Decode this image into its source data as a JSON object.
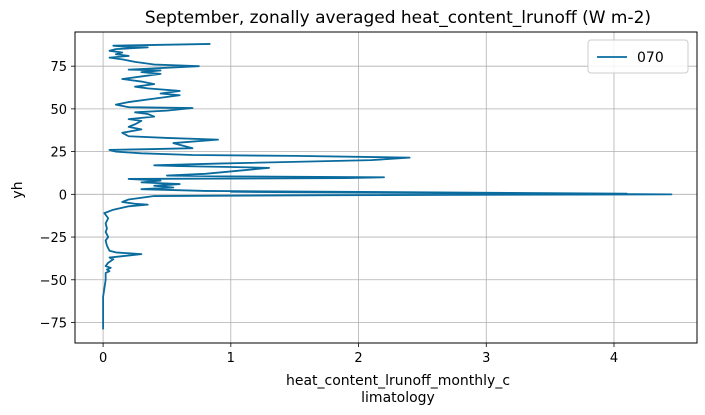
{
  "chart_data": {
    "type": "line",
    "title": "September, zonally averaged heat_content_lrunoff (W m-2)",
    "xlabel_line1": "heat_content_lrunoff_monthly_c",
    "xlabel_line2": "limatology",
    "ylabel": "yh",
    "xlim": [
      -0.22,
      4.65
    ],
    "ylim": [
      -87,
      95
    ],
    "xticks": [
      0,
      1,
      2,
      3,
      4
    ],
    "yticks": [
      -75,
      -50,
      -25,
      0,
      25,
      50,
      75
    ],
    "grid": true,
    "legend_position": "top-right",
    "series": [
      {
        "name": "070",
        "color": "#0a6b9e",
        "points": [
          [
            0.0,
            -79
          ],
          [
            0.0,
            -70
          ],
          [
            0.0,
            -60
          ],
          [
            0.01,
            -55
          ],
          [
            0.02,
            -50
          ],
          [
            0.02,
            -46
          ],
          [
            0.05,
            -45
          ],
          [
            0.03,
            -44
          ],
          [
            0.06,
            -43
          ],
          [
            0.02,
            -42
          ],
          [
            0.04,
            -40
          ],
          [
            0.08,
            -38
          ],
          [
            0.05,
            -37
          ],
          [
            0.3,
            -35
          ],
          [
            0.1,
            -34
          ],
          [
            0.05,
            -33
          ],
          [
            0.03,
            -30
          ],
          [
            0.02,
            -27
          ],
          [
            0.04,
            -25
          ],
          [
            0.02,
            -22
          ],
          [
            0.03,
            -20
          ],
          [
            0.02,
            -17
          ],
          [
            0.04,
            -14
          ],
          [
            0.01,
            -11
          ],
          [
            0.08,
            -9
          ],
          [
            0.2,
            -7
          ],
          [
            0.35,
            -6
          ],
          [
            0.25,
            -5.5
          ],
          [
            0.15,
            -4.5
          ],
          [
            0.2,
            -3
          ],
          [
            0.3,
            -2
          ],
          [
            0.4,
            -1
          ],
          [
            1.8,
            -0.5
          ],
          [
            4.45,
            0
          ],
          [
            2.5,
            0.8
          ],
          [
            1.0,
            1.5
          ],
          [
            4.1,
            0.4
          ],
          [
            0.8,
            2
          ],
          [
            0.3,
            3
          ],
          [
            0.55,
            4
          ],
          [
            0.4,
            5
          ],
          [
            0.6,
            6
          ],
          [
            0.3,
            7
          ],
          [
            0.45,
            8
          ],
          [
            0.2,
            9
          ],
          [
            1.9,
            9.5
          ],
          [
            2.2,
            10
          ],
          [
            1.0,
            10.5
          ],
          [
            0.5,
            11
          ],
          [
            0.8,
            12
          ],
          [
            1.3,
            15.5
          ],
          [
            1.0,
            16
          ],
          [
            0.6,
            16.5
          ],
          [
            0.4,
            17
          ],
          [
            0.9,
            18
          ],
          [
            2.1,
            20
          ],
          [
            2.4,
            21.5
          ],
          [
            1.5,
            22.5
          ],
          [
            0.7,
            23
          ],
          [
            0.3,
            24
          ],
          [
            0.1,
            25
          ],
          [
            0.05,
            26
          ],
          [
            0.4,
            26.5
          ],
          [
            0.7,
            27
          ],
          [
            0.55,
            30
          ],
          [
            0.9,
            32
          ],
          [
            0.5,
            33
          ],
          [
            0.2,
            34
          ],
          [
            0.15,
            36
          ],
          [
            0.3,
            38
          ],
          [
            0.2,
            39.5
          ],
          [
            0.25,
            41
          ],
          [
            0.3,
            43
          ],
          [
            0.2,
            44
          ],
          [
            0.4,
            45.5
          ],
          [
            0.35,
            47
          ],
          [
            0.25,
            48
          ],
          [
            0.5,
            49
          ],
          [
            0.7,
            50.5
          ],
          [
            0.2,
            51
          ],
          [
            0.1,
            52.5
          ],
          [
            0.2,
            54
          ],
          [
            0.4,
            56
          ],
          [
            0.6,
            58
          ],
          [
            0.45,
            59
          ],
          [
            0.6,
            60.5
          ],
          [
            0.35,
            62
          ],
          [
            0.25,
            63
          ],
          [
            0.4,
            64.5
          ],
          [
            0.3,
            66
          ],
          [
            0.15,
            67.5
          ],
          [
            0.3,
            69
          ],
          [
            0.45,
            70.5
          ],
          [
            0.3,
            71.5
          ],
          [
            0.45,
            72.5
          ],
          [
            0.2,
            73
          ],
          [
            0.75,
            75
          ],
          [
            0.4,
            76
          ],
          [
            0.25,
            77.5
          ],
          [
            0.15,
            79
          ],
          [
            0.05,
            80
          ],
          [
            0.2,
            81
          ],
          [
            0.1,
            82
          ],
          [
            0.15,
            83
          ],
          [
            0.05,
            84
          ],
          [
            0.1,
            85
          ],
          [
            0.35,
            86
          ],
          [
            0.15,
            86.5
          ],
          [
            0.08,
            87
          ],
          [
            0.84,
            88
          ]
        ]
      }
    ]
  }
}
